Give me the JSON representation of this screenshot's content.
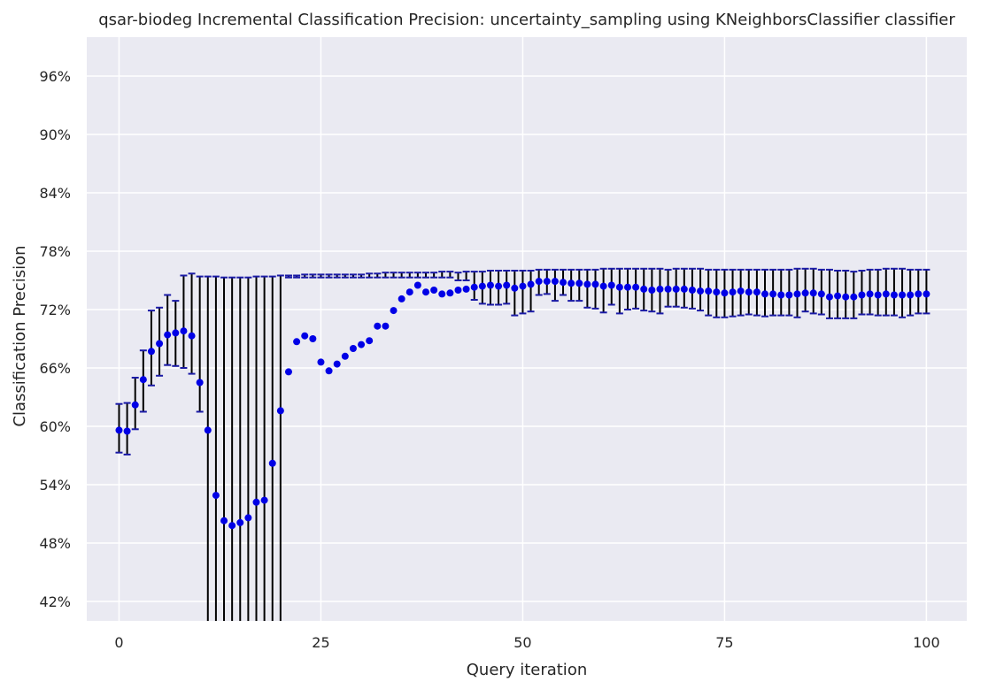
{
  "chart_data": {
    "type": "scatter",
    "title": "qsar-biodeg Incremental Classification Precision: uncertainty_sampling using KNeighborsClassifier classifier",
    "xlabel": "Query iteration",
    "ylabel": "Classification Precision",
    "xlim": [
      -4,
      105
    ],
    "ylim": [
      0.4,
      1.0
    ],
    "xticks": [
      0,
      25,
      50,
      75,
      100
    ],
    "xtick_labels": [
      "0",
      "25",
      "50",
      "75",
      "100"
    ],
    "yticks": [
      0.42,
      0.48,
      0.54,
      0.6,
      0.66,
      0.72,
      0.78,
      0.84,
      0.9,
      0.96
    ],
    "ytick_labels": [
      "42%",
      "48%",
      "54%",
      "60%",
      "66%",
      "72%",
      "78%",
      "84%",
      "90%",
      "96%"
    ],
    "grid": true,
    "colors": {
      "background": "#eaeaf2",
      "grid": "#ffffff",
      "marker": "#0000e6",
      "errorbar": "#000000",
      "cap": "#1a1aa6"
    },
    "series": [
      {
        "x": [
          0,
          1,
          2,
          3,
          4,
          5,
          6,
          7,
          8,
          9,
          10,
          11,
          12,
          13,
          14,
          15,
          16,
          17,
          18,
          19,
          20,
          21,
          22,
          23,
          24,
          25,
          26,
          27,
          28,
          29,
          30,
          31,
          32,
          33,
          34,
          35,
          36,
          37,
          38,
          39,
          40,
          41,
          42,
          43,
          44,
          45,
          46,
          47,
          48,
          49,
          50,
          51,
          52,
          53,
          54,
          55,
          56,
          57,
          58,
          59,
          60,
          61,
          62,
          63,
          64,
          65,
          66,
          67,
          68,
          69,
          70,
          71,
          72,
          73,
          74,
          75,
          76,
          77,
          78,
          79,
          80,
          81,
          82,
          83,
          84,
          85,
          86,
          87,
          88,
          89,
          90,
          91,
          92,
          93,
          94,
          95,
          96,
          97,
          98,
          99,
          100
        ],
        "values": [
          0.596,
          0.595,
          0.622,
          0.648,
          0.677,
          0.685,
          0.694,
          0.696,
          0.698,
          0.693,
          0.645,
          0.596,
          0.529,
          0.503,
          0.498,
          0.501,
          0.506,
          0.522,
          0.524,
          0.562,
          0.616,
          0.656,
          0.687,
          0.693,
          0.69,
          0.666,
          0.657,
          0.664,
          0.672,
          0.68,
          0.684,
          0.688,
          0.703,
          0.703,
          0.719,
          0.731,
          0.738,
          0.745,
          0.738,
          0.74,
          0.736,
          0.737,
          0.74,
          0.741,
          0.743,
          0.744,
          0.745,
          0.744,
          0.745,
          0.742,
          0.744,
          0.746,
          0.749,
          0.749,
          0.749,
          0.748,
          0.747,
          0.747,
          0.746,
          0.746,
          0.744,
          0.745,
          0.743,
          0.743,
          0.743,
          0.741,
          0.74,
          0.741,
          0.741,
          0.741,
          0.741,
          0.74,
          0.739,
          0.739,
          0.738,
          0.737,
          0.738,
          0.739,
          0.738,
          0.738,
          0.736,
          0.736,
          0.735,
          0.735,
          0.736,
          0.737,
          0.737,
          0.736,
          0.733,
          0.734,
          0.733,
          0.733,
          0.735,
          0.736,
          0.735,
          0.736,
          0.735,
          0.735,
          0.735,
          0.736,
          0.736
        ],
        "err_low": [
          0.573,
          0.571,
          0.597,
          0.615,
          0.642,
          0.652,
          0.663,
          0.662,
          0.66,
          0.654,
          0.615,
          0.3,
          0.3,
          0.3,
          0.3,
          0.3,
          0.3,
          0.3,
          0.3,
          0.3,
          0.3,
          0.753,
          0.753,
          0.753,
          0.753,
          0.753,
          0.753,
          0.753,
          0.753,
          0.753,
          0.753,
          0.753,
          0.753,
          0.753,
          0.753,
          0.753,
          0.753,
          0.753,
          0.753,
          0.753,
          0.753,
          0.753,
          0.75,
          0.75,
          0.73,
          0.726,
          0.725,
          0.725,
          0.726,
          0.714,
          0.716,
          0.718,
          0.735,
          0.736,
          0.729,
          0.735,
          0.729,
          0.729,
          0.722,
          0.721,
          0.717,
          0.725,
          0.716,
          0.72,
          0.721,
          0.719,
          0.718,
          0.716,
          0.723,
          0.723,
          0.722,
          0.721,
          0.719,
          0.714,
          0.712,
          0.712,
          0.713,
          0.714,
          0.715,
          0.714,
          0.713,
          0.714,
          0.714,
          0.714,
          0.712,
          0.718,
          0.716,
          0.715,
          0.711,
          0.711,
          0.711,
          0.711,
          0.715,
          0.715,
          0.714,
          0.714,
          0.714,
          0.712,
          0.714,
          0.716,
          0.716
        ],
        "err_high": [
          0.623,
          0.624,
          0.65,
          0.678,
          0.719,
          0.722,
          0.735,
          0.729,
          0.755,
          0.757,
          0.754,
          0.754,
          0.754,
          0.753,
          0.753,
          0.753,
          0.753,
          0.754,
          0.754,
          0.754,
          0.755,
          0.755,
          0.755,
          0.756,
          0.756,
          0.756,
          0.756,
          0.756,
          0.756,
          0.756,
          0.756,
          0.757,
          0.757,
          0.758,
          0.758,
          0.758,
          0.758,
          0.758,
          0.758,
          0.758,
          0.759,
          0.759,
          0.758,
          0.759,
          0.759,
          0.759,
          0.76,
          0.76,
          0.76,
          0.76,
          0.76,
          0.76,
          0.761,
          0.761,
          0.761,
          0.761,
          0.761,
          0.761,
          0.761,
          0.761,
          0.762,
          0.762,
          0.762,
          0.762,
          0.762,
          0.762,
          0.762,
          0.762,
          0.761,
          0.762,
          0.762,
          0.762,
          0.762,
          0.761,
          0.761,
          0.761,
          0.761,
          0.761,
          0.761,
          0.761,
          0.761,
          0.761,
          0.761,
          0.761,
          0.762,
          0.762,
          0.762,
          0.761,
          0.761,
          0.76,
          0.76,
          0.759,
          0.76,
          0.761,
          0.761,
          0.762,
          0.762,
          0.762,
          0.761,
          0.761,
          0.761
        ]
      }
    ]
  }
}
